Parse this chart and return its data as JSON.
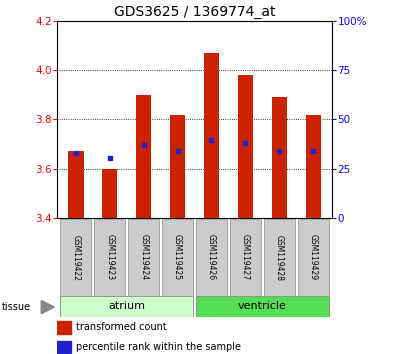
{
  "title": "GDS3625 / 1369774_at",
  "samples": [
    "GSM119422",
    "GSM119423",
    "GSM119424",
    "GSM119425",
    "GSM119426",
    "GSM119427",
    "GSM119428",
    "GSM119429"
  ],
  "transformed_count": [
    3.67,
    3.6,
    3.9,
    3.82,
    4.07,
    3.98,
    3.89,
    3.82
  ],
  "percentile_rank": [
    3.665,
    3.645,
    3.695,
    3.672,
    3.715,
    3.705,
    3.672,
    3.672
  ],
  "ylim_left": [
    3.4,
    4.2
  ],
  "ylim_right": [
    0,
    100
  ],
  "right_ticks": [
    0,
    25,
    50,
    75,
    100
  ],
  "right_tick_labels": [
    "0",
    "25",
    "50",
    "75",
    "100%"
  ],
  "left_ticks": [
    3.4,
    3.6,
    3.8,
    4.0,
    4.2
  ],
  "bar_bottom": 3.4,
  "bar_color": "#cc2200",
  "percentile_color": "#2222cc",
  "tissue_groups": [
    {
      "label": "atrium",
      "start": 0,
      "end": 3,
      "color": "#ccffcc"
    },
    {
      "label": "ventricle",
      "start": 4,
      "end": 7,
      "color": "#55dd55"
    }
  ],
  "tissue_label": "tissue",
  "legend_items": [
    {
      "label": "transformed count",
      "color": "#cc2200"
    },
    {
      "label": "percentile rank within the sample",
      "color": "#2222cc"
    }
  ],
  "bar_width": 0.45,
  "sample_box_color": "#cccccc",
  "sample_box_edge": "#888888"
}
